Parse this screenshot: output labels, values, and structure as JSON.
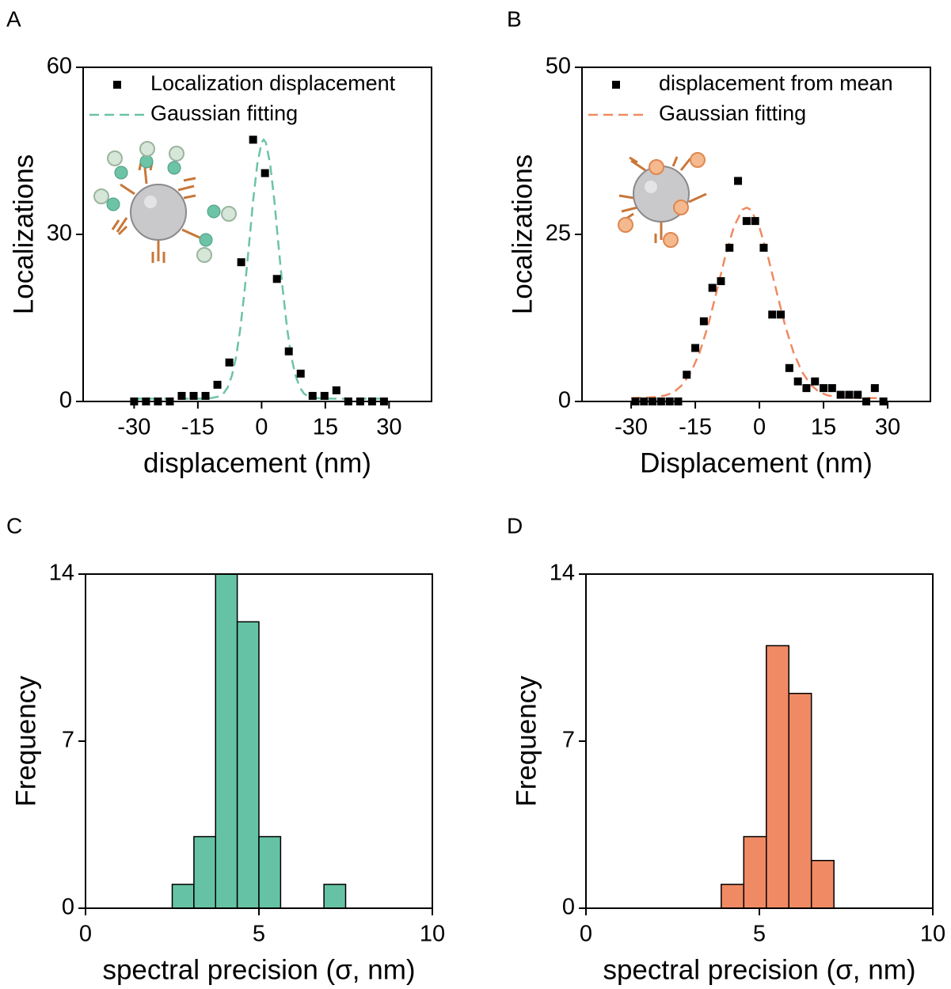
{
  "chart_data": [
    {
      "type": "scatter",
      "panel_label": "A",
      "x_label": "displacement (nm)",
      "y_label": "Localizations",
      "xlim": [
        -42,
        40
      ],
      "xticks": [
        -30,
        -15,
        0,
        15,
        30
      ],
      "ylim": [
        0,
        60
      ],
      "yticks": [
        0,
        30,
        60
      ],
      "series": [
        {
          "name": "Localization displacement",
          "color": "#000000",
          "style": "marker",
          "x": [
            -30,
            -27.2,
            -24.4,
            -21.6,
            -18.8,
            -16,
            -13.2,
            -10.4,
            -7.6,
            -4.8,
            -2,
            0.8,
            3.6,
            6.4,
            9.2,
            12,
            14.8,
            17.6,
            20.4,
            23.2,
            26,
            28.8
          ],
          "values": [
            0,
            0,
            0,
            0,
            1,
            1,
            1,
            3,
            7,
            25,
            47,
            41,
            22,
            9,
            5,
            1,
            1,
            2,
            0,
            0,
            0,
            0
          ]
        },
        {
          "name": "Gaussian fitting",
          "color": "#6cc3a6",
          "style": "dashed",
          "x": [
            -30,
            -26,
            -20,
            -14,
            -12,
            -10,
            -9,
            -8,
            -7,
            -6,
            -5,
            -4,
            -3,
            -2,
            -1,
            0,
            0.5,
            1,
            2,
            3,
            4,
            5,
            6,
            7,
            8,
            9,
            10,
            11,
            13,
            15,
            20,
            24,
            28
          ],
          "values": [
            0.5,
            0.5,
            0.5,
            0.5,
            0.6,
            0.9,
            1.4,
            2.5,
            4.6,
            8.0,
            13.1,
            19.9,
            27.9,
            36.0,
            42.7,
            46.5,
            47,
            46.5,
            42.7,
            36.0,
            27.9,
            19.9,
            13.1,
            8.0,
            4.6,
            2.5,
            1.4,
            0.9,
            0.6,
            0.5,
            0.5,
            0.5,
            0.5
          ]
        }
      ]
    },
    {
      "type": "scatter",
      "panel_label": "B",
      "x_label": "Displacement (nm)",
      "y_label": "Localizations",
      "xlim": [
        -41.5,
        40
      ],
      "xticks": [
        -30,
        -15,
        0,
        15,
        30
      ],
      "ylim": [
        0,
        50
      ],
      "yticks": [
        0,
        25,
        50
      ],
      "series": [
        {
          "name": "displacement from mean",
          "color": "#000000",
          "style": "marker",
          "x": [
            -29,
            -27,
            -25,
            -23,
            -21,
            -19,
            -17,
            -15,
            -13,
            -11,
            -9,
            -7,
            -5,
            -3,
            -1,
            1,
            3,
            5,
            7,
            9,
            11,
            13,
            15,
            17,
            19,
            21,
            23,
            25,
            27,
            29
          ],
          "values": [
            0,
            0,
            0,
            0,
            0,
            0,
            4,
            8,
            12,
            17,
            18,
            23,
            33,
            27,
            27,
            23,
            13,
            13,
            5,
            3,
            2,
            3,
            2,
            2,
            1,
            1,
            1,
            0,
            2,
            0
          ]
        },
        {
          "name": "Gaussian fitting",
          "color": "#ef8a62",
          "style": "dashed",
          "x": [
            -30,
            -26,
            -24,
            -22,
            -20,
            -18,
            -16,
            -14,
            -12,
            -10,
            -8,
            -6,
            -4,
            -3,
            -2,
            0,
            2,
            4,
            6,
            8,
            10,
            12,
            14,
            16,
            18,
            20,
            24,
            28
          ],
          "values": [
            0.5,
            0.6,
            0.7,
            0.9,
            1.4,
            2.5,
            4.4,
            7.3,
            11.4,
            16.5,
            21.7,
            26.1,
            28.7,
            29,
            28.7,
            26.1,
            21.7,
            16.5,
            11.4,
            7.3,
            4.4,
            2.5,
            1.4,
            0.9,
            0.7,
            0.6,
            0.5,
            0.5
          ]
        }
      ]
    },
    {
      "type": "histogram",
      "panel_label": "C",
      "x_label": "spectral precision (σ, nm)",
      "y_label": "Frequency",
      "xlim": [
        0,
        10
      ],
      "xticks": [
        0,
        5,
        10
      ],
      "ylim": [
        0,
        14
      ],
      "yticks": [
        0,
        7,
        14
      ],
      "color": "#66c2a5",
      "bins": [
        2.5,
        3.125,
        3.75,
        4.375,
        5,
        5.625,
        6.25,
        6.875,
        7.5
      ],
      "values": [
        1,
        3,
        14,
        12,
        3,
        0,
        0,
        1
      ]
    },
    {
      "type": "histogram",
      "panel_label": "D",
      "x_label": "spectral precision (σ, nm)",
      "y_label": "Frequency",
      "xlim": [
        0,
        10
      ],
      "xticks": [
        0,
        5,
        10
      ],
      "ylim": [
        0,
        14
      ],
      "yticks": [
        0,
        7,
        14
      ],
      "color": "#f08a65",
      "bins": [
        3.9,
        4.55,
        5.2,
        5.85,
        6.5,
        7.15
      ],
      "values": [
        1,
        3,
        11,
        9,
        2
      ]
    }
  ]
}
